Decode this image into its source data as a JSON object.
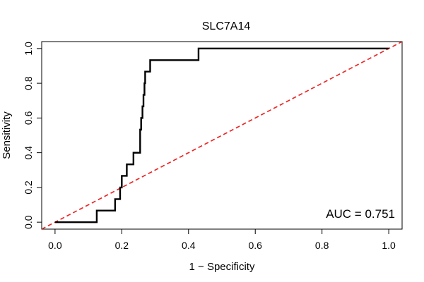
{
  "chart_data": {
    "type": "line",
    "title": "SLC7A14",
    "xlabel": "1 − Specificity",
    "ylabel": "Sensitivity",
    "xlim": [
      -0.04,
      1.04
    ],
    "ylim": [
      -0.04,
      1.04
    ],
    "x_ticks": [
      0.0,
      0.2,
      0.4,
      0.6,
      0.8,
      1.0
    ],
    "x_tick_labels": [
      "0.0",
      "0.2",
      "0.4",
      "0.6",
      "0.8",
      "1.0"
    ],
    "y_ticks": [
      0.0,
      0.2,
      0.4,
      0.6,
      0.8,
      1.0
    ],
    "y_tick_labels": [
      "0.0",
      "0.2",
      "0.4",
      "0.6",
      "0.8",
      "1.0"
    ],
    "grid": false,
    "annotation": "AUC = 0.751",
    "series": [
      {
        "name": "ROC",
        "color": "#000000",
        "style": "step",
        "x": [
          0.0,
          0.125,
          0.125,
          0.18,
          0.18,
          0.195,
          0.195,
          0.2,
          0.2,
          0.215,
          0.215,
          0.235,
          0.235,
          0.255,
          0.255,
          0.258,
          0.258,
          0.262,
          0.262,
          0.265,
          0.265,
          0.268,
          0.268,
          0.27,
          0.27,
          0.285,
          0.285,
          0.43,
          0.43,
          1.0
        ],
        "y": [
          0.0,
          0.0,
          0.067,
          0.067,
          0.133,
          0.133,
          0.2,
          0.2,
          0.267,
          0.267,
          0.333,
          0.333,
          0.4,
          0.4,
          0.533,
          0.533,
          0.6,
          0.6,
          0.667,
          0.667,
          0.733,
          0.733,
          0.8,
          0.8,
          0.867,
          0.867,
          0.933,
          0.933,
          1.0,
          1.0
        ]
      },
      {
        "name": "Reference",
        "color": "#ee2222",
        "style": "dashed",
        "x": [
          -0.04,
          1.04
        ],
        "y": [
          -0.04,
          1.04
        ]
      }
    ]
  }
}
